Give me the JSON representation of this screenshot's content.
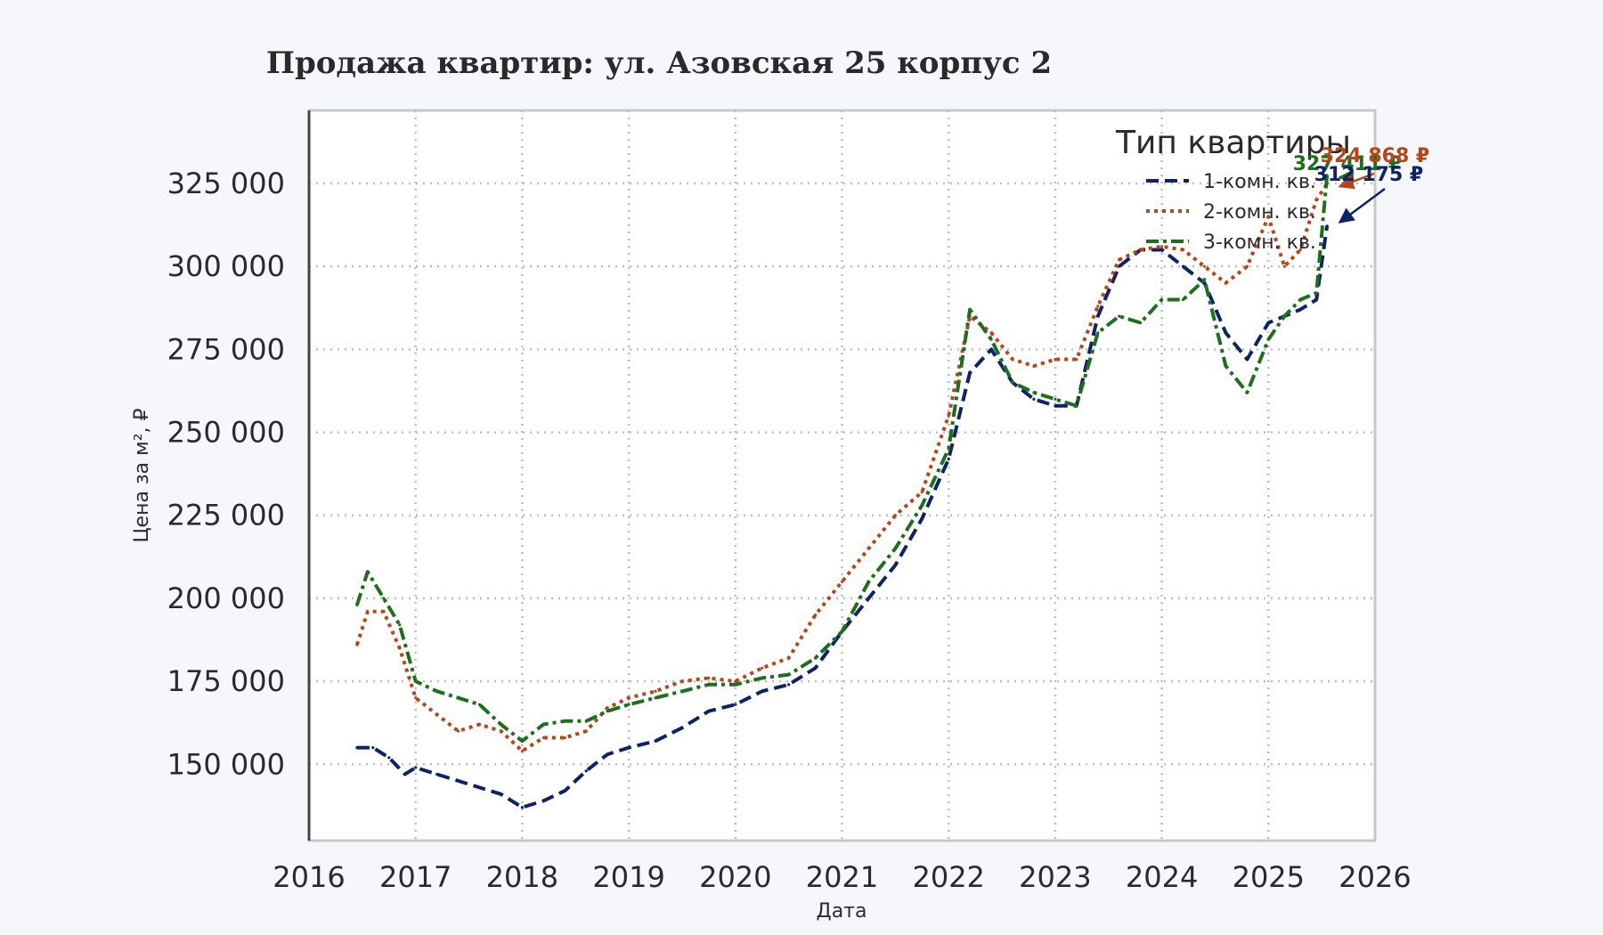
{
  "chart_data": {
    "type": "line",
    "title": "Продажа квартир: ул. Азовская 25 корпус 2",
    "xlabel": "Дата",
    "ylabel": "Цена за м², ₽",
    "xlim": [
      2016.0,
      2026.0
    ],
    "ylim": [
      127000,
      347000
    ],
    "x_ticks": [
      "2016",
      "2017",
      "2018",
      "2019",
      "2020",
      "2021",
      "2022",
      "2023",
      "2024",
      "2025",
      "2026"
    ],
    "y_ticks": [
      "150 000",
      "175 000",
      "200 000",
      "225 000",
      "250 000",
      "275 000",
      "300 000",
      "325 000"
    ],
    "y_tick_values": [
      150000,
      175000,
      200000,
      225000,
      250000,
      275000,
      300000,
      325000
    ],
    "grid": true,
    "legend": {
      "title": "Тип квартиры",
      "placement": "top-right"
    },
    "series": [
      {
        "name": "1-комн. кв.",
        "color": "#0d2366",
        "style": "dashed",
        "x": [
          2016.45,
          2016.6,
          2016.75,
          2016.9,
          2017.0,
          2017.2,
          2017.4,
          2017.6,
          2017.8,
          2018.0,
          2018.2,
          2018.4,
          2018.6,
          2018.8,
          2019.0,
          2019.25,
          2019.5,
          2019.75,
          2020.0,
          2020.25,
          2020.5,
          2020.75,
          2021.0,
          2021.25,
          2021.5,
          2021.75,
          2022.0,
          2022.2,
          2022.4,
          2022.6,
          2022.8,
          2023.0,
          2023.2,
          2023.4,
          2023.6,
          2023.8,
          2024.0,
          2024.2,
          2024.4,
          2024.6,
          2024.8,
          2025.0,
          2025.15,
          2025.3,
          2025.45,
          2025.55
        ],
        "values": [
          155000,
          155000,
          152000,
          147000,
          149000,
          147000,
          145000,
          143000,
          141000,
          137000,
          139000,
          142000,
          148000,
          153000,
          155000,
          157000,
          161000,
          166000,
          168000,
          172000,
          174000,
          179000,
          190000,
          200000,
          210000,
          224000,
          242000,
          268000,
          275000,
          265000,
          260000,
          258000,
          258000,
          285000,
          300000,
          305000,
          305000,
          300000,
          295000,
          280000,
          272000,
          283000,
          285000,
          287000,
          290000,
          312175
        ]
      },
      {
        "name": "2-комн. кв.",
        "color": "#b5461b",
        "style": "dotted",
        "x": [
          2016.45,
          2016.55,
          2016.7,
          2016.85,
          2017.0,
          2017.2,
          2017.4,
          2017.6,
          2017.8,
          2018.0,
          2018.2,
          2018.4,
          2018.6,
          2018.8,
          2019.0,
          2019.25,
          2019.5,
          2019.75,
          2020.0,
          2020.25,
          2020.5,
          2020.75,
          2021.0,
          2021.25,
          2021.5,
          2021.75,
          2022.0,
          2022.2,
          2022.4,
          2022.6,
          2022.8,
          2023.0,
          2023.2,
          2023.4,
          2023.6,
          2023.8,
          2024.0,
          2024.2,
          2024.4,
          2024.6,
          2024.8,
          2025.0,
          2025.15,
          2025.3,
          2025.45,
          2025.55
        ],
        "values": [
          186000,
          196000,
          196000,
          185000,
          170000,
          165000,
          160000,
          162000,
          160000,
          154000,
          158000,
          158000,
          160000,
          167000,
          170000,
          172000,
          175000,
          176000,
          175000,
          179000,
          182000,
          195000,
          205000,
          215000,
          225000,
          232000,
          255000,
          285000,
          280000,
          272000,
          270000,
          272000,
          272000,
          288000,
          302000,
          305000,
          306000,
          305000,
          300000,
          295000,
          300000,
          315000,
          300000,
          305000,
          320000,
          324868
        ]
      },
      {
        "name": "3-комн. кв.",
        "color": "#1e6e1e",
        "style": "dashdot",
        "x": [
          2016.45,
          2016.55,
          2016.7,
          2016.85,
          2017.0,
          2017.2,
          2017.4,
          2017.6,
          2017.8,
          2018.0,
          2018.2,
          2018.4,
          2018.6,
          2018.8,
          2019.0,
          2019.25,
          2019.5,
          2019.75,
          2020.0,
          2020.25,
          2020.5,
          2020.75,
          2021.0,
          2021.25,
          2021.5,
          2021.75,
          2022.0,
          2022.2,
          2022.4,
          2022.6,
          2022.8,
          2023.0,
          2023.2,
          2023.4,
          2023.6,
          2023.8,
          2024.0,
          2024.2,
          2024.4,
          2024.6,
          2024.8,
          2025.0,
          2025.15,
          2025.3,
          2025.45,
          2025.55
        ],
        "values": [
          198000,
          208000,
          200000,
          192000,
          175000,
          172000,
          170000,
          168000,
          162000,
          157000,
          162000,
          163000,
          163000,
          166000,
          168000,
          170000,
          172000,
          174000,
          174000,
          176000,
          177000,
          182000,
          190000,
          205000,
          215000,
          228000,
          245000,
          287000,
          278000,
          265000,
          262000,
          260000,
          258000,
          280000,
          285000,
          283000,
          290000,
          290000,
          296000,
          270000,
          262000,
          278000,
          285000,
          290000,
          292000,
          327411
        ]
      }
    ],
    "annotations": [
      {
        "text": "327 411 ₽",
        "color": "#1e6e1e",
        "x": 2025.55,
        "y": 327411
      },
      {
        "text": "324 868 ₽",
        "color": "#b5461b",
        "x": 2025.55,
        "y": 324868
      },
      {
        "text": "312 175 ₽",
        "color": "#0d2366",
        "x": 2025.55,
        "y": 312175
      }
    ]
  }
}
